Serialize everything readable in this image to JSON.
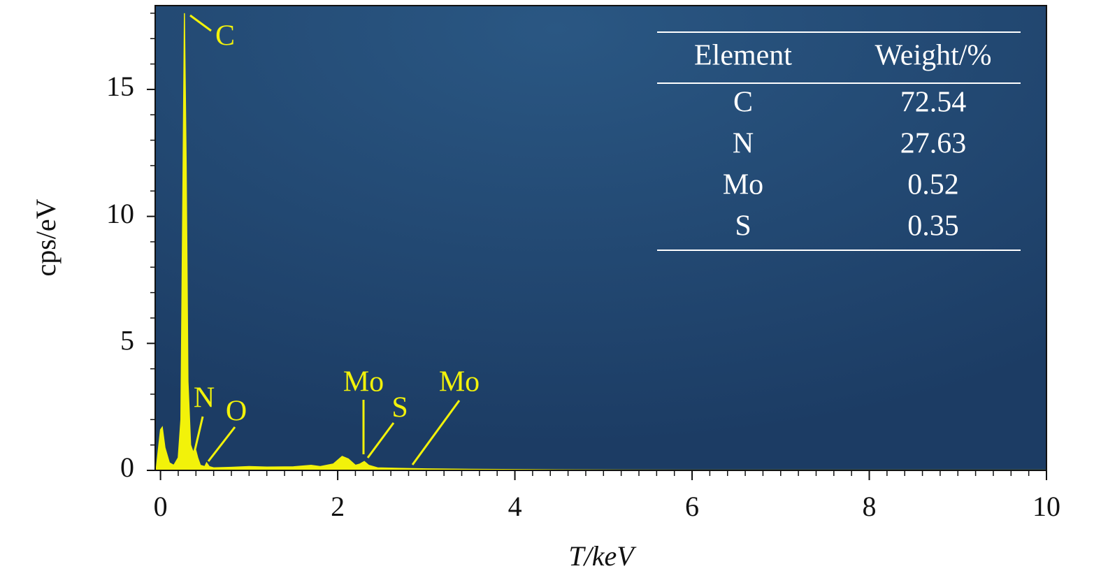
{
  "chart_data": {
    "type": "area",
    "x_label": "T/keV",
    "y_label": "cps/eV",
    "x": [
      -0.05,
      0,
      0.02,
      0.05,
      0.1,
      0.15,
      0.2,
      0.23,
      0.25,
      0.27,
      0.29,
      0.31,
      0.34,
      0.37,
      0.39,
      0.42,
      0.45,
      0.5,
      0.52,
      0.55,
      0.6,
      0.8,
      1.0,
      1.2,
      1.5,
      1.7,
      1.8,
      1.95,
      2.05,
      2.12,
      2.2,
      2.25,
      2.3,
      2.35,
      2.45,
      2.7,
      3.0,
      3.5,
      4.5,
      6,
      8,
      10
    ],
    "values": [
      0,
      1.6,
      1.7,
      0.9,
      0.3,
      0.2,
      0.5,
      2.0,
      10,
      18.0,
      12,
      3.5,
      1.0,
      0.7,
      0.9,
      0.5,
      0.2,
      0.15,
      0.3,
      0.15,
      0.1,
      0.12,
      0.15,
      0.13,
      0.14,
      0.2,
      0.15,
      0.25,
      0.55,
      0.45,
      0.2,
      0.25,
      0.35,
      0.2,
      0.1,
      0.08,
      0.06,
      0.04,
      0.02,
      0.01,
      0.01,
      0.01
    ],
    "color": "#f2f20a",
    "xlim": [
      -0.06,
      10
    ],
    "ylim": [
      0,
      18.3
    ],
    "xticks": [
      0,
      2,
      4,
      6,
      8,
      10
    ],
    "yticks": [
      0,
      5,
      10,
      15
    ],
    "x_minor_step": 0.2,
    "y_minor_step": 1,
    "annotations": [
      {
        "text": "C"
      },
      {
        "text": "N"
      },
      {
        "text": "O"
      },
      {
        "text": "Mo"
      },
      {
        "text": "S"
      },
      {
        "text": "Mo"
      }
    ],
    "table": {
      "header": [
        "Element",
        "Weight/%"
      ],
      "rows": [
        [
          "C",
          "72.54"
        ],
        [
          "N",
          "27.63"
        ],
        [
          "Mo",
          "0.52"
        ],
        [
          "S",
          "0.35"
        ]
      ]
    }
  }
}
